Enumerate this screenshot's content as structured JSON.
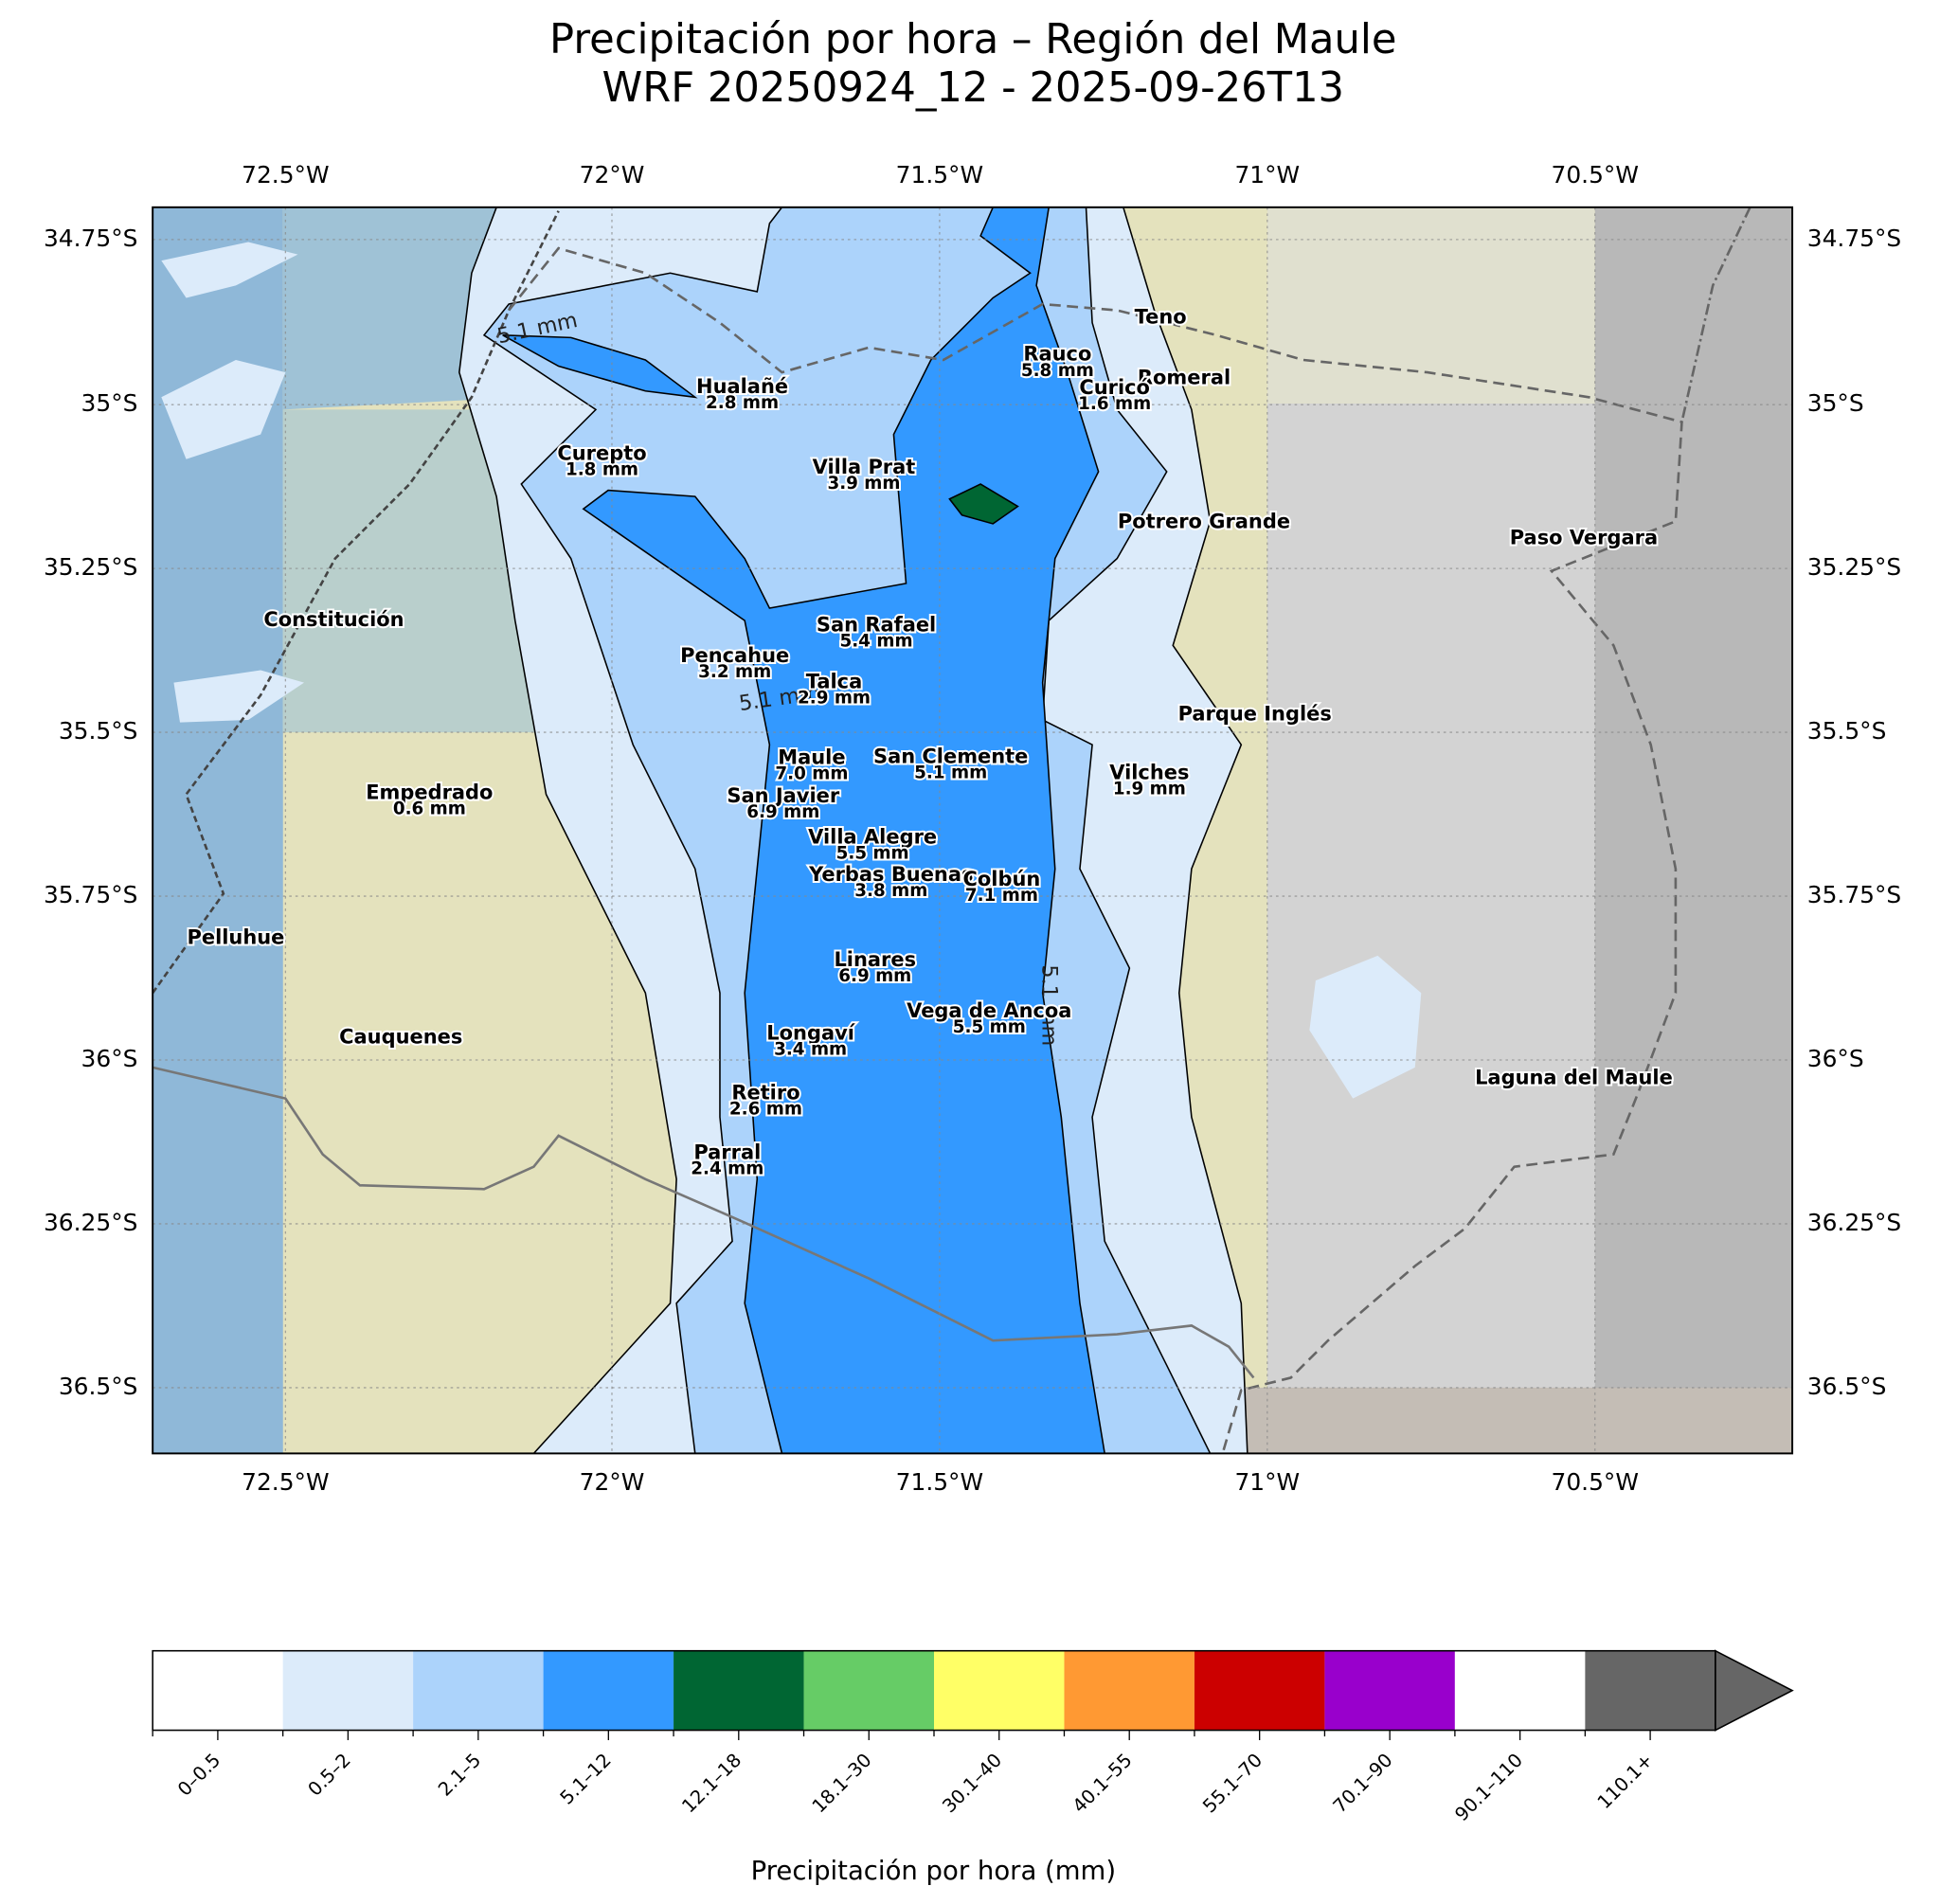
{
  "title": [
    "Precipitación por hora – Región del Maule",
    "WRF 20250924_12 - 2025-09-26T13"
  ],
  "map": {
    "lon_ticks": [
      "72.5°W",
      "72°W",
      "71.5°W",
      "71°W",
      "70.5°W"
    ],
    "lat_ticks": [
      "34.75°S",
      "35°S",
      "35.25°S",
      "35.5°S",
      "35.75°S",
      "36°S",
      "36.25°S",
      "36.5°S"
    ],
    "contour_labels": [
      "5.1 mm",
      "5.1 mm",
      "5.1 mm"
    ],
    "places": [
      {
        "name": "Hualañé",
        "value": "2.8 mm"
      },
      {
        "name": "Curepto",
        "value": "1.8 mm"
      },
      {
        "name": "Villa Prat",
        "value": "3.9 mm"
      },
      {
        "name": "Rauco",
        "value": "5.8 mm"
      },
      {
        "name": "Teno"
      },
      {
        "name": "Romeral"
      },
      {
        "name": "Curicó",
        "value": "1.6 mm"
      },
      {
        "name": "Potrero Grande"
      },
      {
        "name": "Paso Vergara"
      },
      {
        "name": "Constitución"
      },
      {
        "name": "San Rafael",
        "value": "5.4 mm"
      },
      {
        "name": "Pencahue",
        "value": "3.2 mm"
      },
      {
        "name": "Talca",
        "value": "2.9 mm"
      },
      {
        "name": "Parque Inglés"
      },
      {
        "name": "Maule",
        "value": "7.0 mm"
      },
      {
        "name": "San Clemente",
        "value": "5.1 mm"
      },
      {
        "name": "Vilches",
        "value": "1.9 mm"
      },
      {
        "name": "Empedrado",
        "value": "0.6 mm"
      },
      {
        "name": "San Javier",
        "value": "6.9 mm"
      },
      {
        "name": "Villa Alegre",
        "value": "5.5 mm"
      },
      {
        "name": "Yerbas Buenas",
        "value": "3.8 mm"
      },
      {
        "name": "Colbún",
        "value": "7.1 mm"
      },
      {
        "name": "Pelluhue"
      },
      {
        "name": "Linares",
        "value": "6.9 mm"
      },
      {
        "name": "Vega de Ancoa",
        "value": "5.5 mm"
      },
      {
        "name": "Cauquenes"
      },
      {
        "name": "Longaví",
        "value": "3.4 mm"
      },
      {
        "name": "Laguna del Maule"
      },
      {
        "name": "Retiro",
        "value": "2.6 mm"
      },
      {
        "name": "Parral",
        "value": "2.4 mm"
      }
    ]
  },
  "colorbar": {
    "label": "Precipitación por hora (mm)",
    "classes": [
      {
        "label": "0–0.5",
        "color": "#ffffff"
      },
      {
        "label": "0.5–2",
        "color": "#dcebfa"
      },
      {
        "label": "2.1–5",
        "color": "#acd3fb"
      },
      {
        "label": "5.1–12",
        "color": "#3399ff"
      },
      {
        "label": "12.1–18",
        "color": "#006633"
      },
      {
        "label": "18.1–30",
        "color": "#66cc66"
      },
      {
        "label": "30.1–40",
        "color": "#ffff66"
      },
      {
        "label": "40.1–55",
        "color": "#ff9933"
      },
      {
        "label": "55.1–70",
        "color": "#cc0000"
      },
      {
        "label": "70.1–90",
        "color": "#9900cc"
      },
      {
        "label": "90.1–110",
        "color": "#ffffff"
      },
      {
        "label": "110.1+",
        "color": "#666666"
      }
    ]
  }
}
